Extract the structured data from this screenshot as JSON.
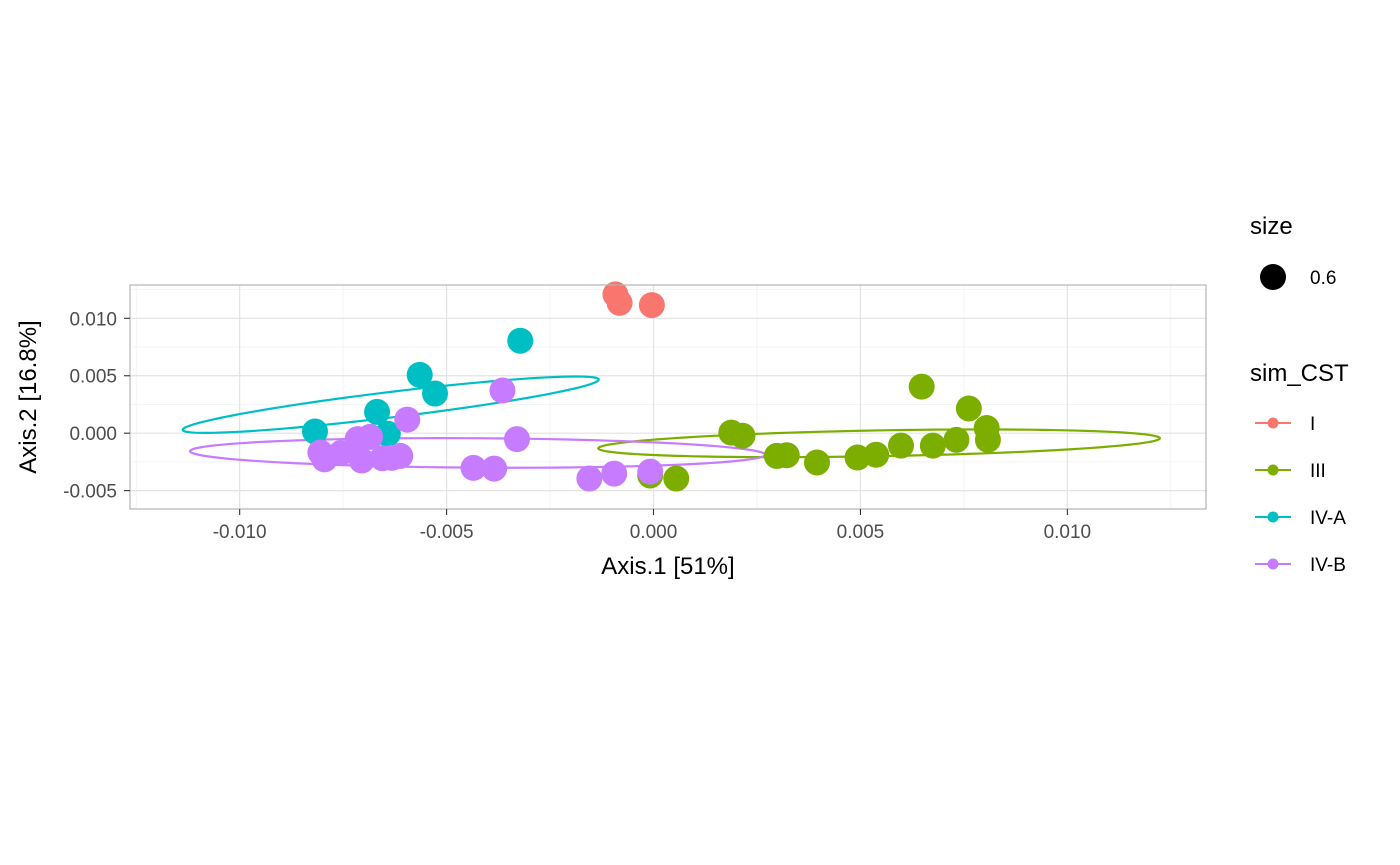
{
  "chart_data": {
    "type": "scatter",
    "xlabel": "Axis.1   [51%]",
    "ylabel": "Axis.2   [16.8%]",
    "xlim": [
      -0.01265,
      0.01335
    ],
    "ylim": [
      -0.0066,
      0.0129
    ],
    "x_ticks": [
      -0.01,
      -0.005,
      0.0,
      0.005,
      0.01
    ],
    "x_tick_labels": [
      "-0.010",
      "-0.005",
      "0.000",
      "0.005",
      "0.010"
    ],
    "y_ticks": [
      -0.005,
      0.0,
      0.005,
      0.01
    ],
    "y_tick_labels": [
      "-0.005",
      "0.000",
      "0.005",
      "0.010"
    ],
    "grid": true,
    "legend_position": "right",
    "size_legend": {
      "title": "size",
      "label": "0.6"
    },
    "color_legend": {
      "title": "sim_CST"
    },
    "series": [
      {
        "name": "I",
        "color": "#F8766D",
        "points": [
          [
            -0.00092,
            0.01208
          ],
          [
            -0.00082,
            0.01135
          ],
          [
            -4e-05,
            0.01115
          ]
        ],
        "ellipse": null
      },
      {
        "name": "III",
        "color": "#7CAE00",
        "points": [
          [
            0.00188,
            5e-05
          ],
          [
            0.00215,
            -0.00022
          ],
          [
            0.00298,
            -0.00198
          ],
          [
            0.00322,
            -0.00192
          ],
          [
            0.00395,
            -0.00255
          ],
          [
            0.00493,
            -0.00212
          ],
          [
            0.00538,
            -0.00188
          ],
          [
            0.00598,
            -0.00108
          ],
          [
            0.00648,
            0.00405
          ],
          [
            0.00675,
            -0.00108
          ],
          [
            0.00732,
            -0.00058
          ],
          [
            0.00762,
            0.00215
          ],
          [
            0.00805,
            0.00045
          ],
          [
            0.00808,
            -0.00058
          ],
          [
            -8e-05,
            -0.00368
          ],
          [
            0.00055,
            -0.00395
          ]
        ],
        "ellipse": {
          "center": [
            0.00545,
            -0.00088
          ],
          "rx": 0.0068,
          "ry": 0.00112,
          "angle_deg": 3.8
        }
      },
      {
        "name": "IV-A",
        "color": "#00BFC4",
        "points": [
          [
            -0.00818,
            0.00015
          ],
          [
            -0.00668,
            0.00185
          ],
          [
            -0.00642,
            -5e-05
          ],
          [
            -0.00565,
            0.00508
          ],
          [
            -0.00528,
            0.00345
          ],
          [
            -0.00322,
            0.00805
          ]
        ],
        "ellipse": {
          "center": [
            -0.00635,
            0.00248
          ],
          "rx": 0.0055,
          "ry": 0.00102,
          "angle_deg": 24.4
        }
      },
      {
        "name": "IV-B",
        "color": "#C77CFF",
        "points": [
          [
            -0.00805,
            -0.00168
          ],
          [
            -0.00795,
            -0.00228
          ],
          [
            -0.00755,
            -0.00172
          ],
          [
            -0.00715,
            -0.00052
          ],
          [
            -0.00705,
            -0.00238
          ],
          [
            -0.00685,
            -0.00032
          ],
          [
            -0.00655,
            -0.00218
          ],
          [
            -0.00632,
            -0.00215
          ],
          [
            -0.00612,
            -0.00198
          ],
          [
            -0.00595,
            0.00118
          ],
          [
            -0.00435,
            -0.00302
          ],
          [
            -0.00385,
            -0.00308
          ],
          [
            -0.00365,
            0.00372
          ],
          [
            -0.0033,
            -0.00052
          ],
          [
            -0.00155,
            -0.00395
          ],
          [
            -0.00095,
            -0.00352
          ],
          [
            -8e-05,
            -0.00335
          ]
        ],
        "ellipse": {
          "center": [
            -0.00425,
            -0.00172
          ],
          "rx": 0.00695,
          "ry": 0.00128,
          "angle_deg": -1.3
        }
      }
    ]
  }
}
